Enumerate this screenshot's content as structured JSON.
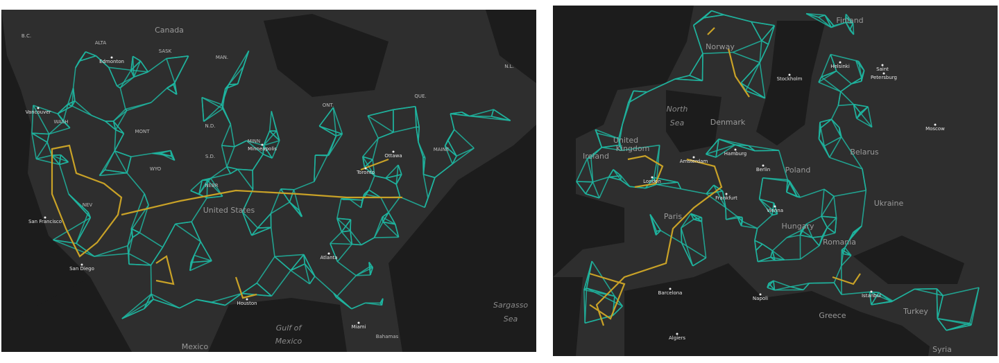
{
  "maps": [
    {
      "labels": [
        "Canada",
        "B.C.",
        "ALTA",
        "SASK",
        "MAN.",
        "ONT.",
        "QUE.",
        "N.L.",
        "Edmonton",
        "Vancouver",
        "WASH",
        "MONT",
        "N.D.",
        "MINN",
        "Minneapolis",
        "S.D.",
        "WYO",
        "NEBR",
        "NEV",
        "Ottawa",
        "Toronto",
        "MAINE",
        "San Francisco",
        "United States",
        "San Diego",
        "Atlanta",
        "Houston",
        "Miami",
        "Bahamas",
        "Mexico",
        "Gulf of",
        "Mexico",
        "Sargasso",
        "Sea"
      ]
    },
    {
      "labels": [
        "Finland",
        "Norway",
        "Stockholm",
        "Helsinki",
        "Saint",
        "Petersburg",
        "North",
        "Sea",
        "Denmark",
        "Moscow",
        "Belarus",
        "United",
        "Kingdom",
        "Ireland",
        "Amsterdam",
        "Hamburg",
        "Berlin",
        "Poland",
        "London",
        "Ukraine",
        "Paris",
        "Frankfurt",
        "Vienna",
        "Hungary",
        "Romania",
        "Barcelona",
        "Napoli",
        "Istanbul",
        "Greece",
        "Turkey",
        "Algiers",
        "Syria"
      ]
    }
  ]
}
